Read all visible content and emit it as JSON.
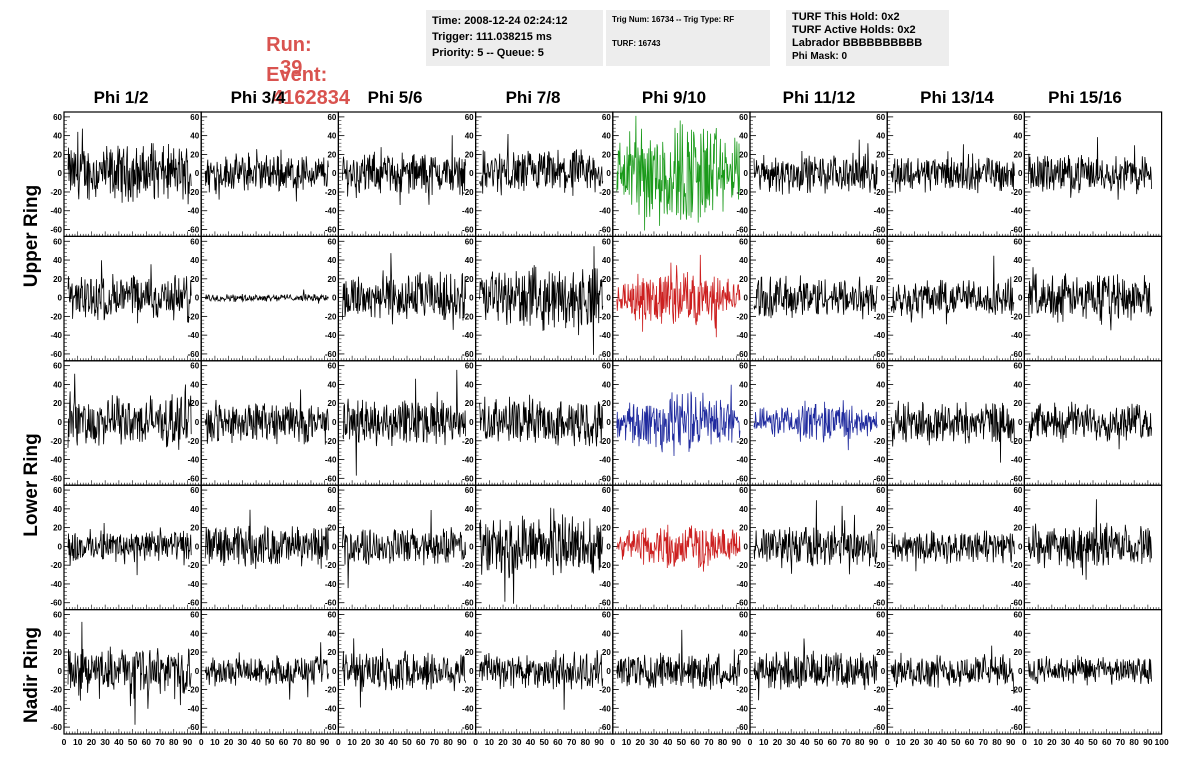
{
  "header": {
    "run_label": "Run:",
    "run_value": "39",
    "event_label": "Event:",
    "event_value": "4162834",
    "box1": {
      "time": "Time: 2008-12-24 02:24:12",
      "trigger": "Trigger: 111.038215 ms",
      "priority": "Priority: 5 -- Queue: 5"
    },
    "box2": {
      "trig": "Trig Num: 16734 -- Trig Type: RF",
      "turf": "TURF: 16743"
    },
    "box3": {
      "hold": "TURF This Hold: 0x2",
      "active": "TURF Active Holds: 0x2",
      "labrador": "Labrador BBBBBBBBBB",
      "phimask": "Phi Mask: 0"
    }
  },
  "columns": [
    "Phi 1/2",
    "Phi 3/4",
    "Phi 5/6",
    "Phi 7/8",
    "Phi 9/10",
    "Phi 11/12",
    "Phi 13/14",
    "Phi 15/16"
  ],
  "rows": [
    {
      "label": "Upper Ring",
      "span": 2
    },
    {
      "label": "Lower Ring",
      "span": 2
    },
    {
      "label": "Nadir Ring",
      "span": 1
    }
  ],
  "colors": {
    "trace_default": "#000000",
    "trace_green": "#1a9a1a",
    "trace_red": "#cc1f1f",
    "trace_blue": "#1f2a9e",
    "run_text": "#d9534f",
    "info_box_bg": "#ededed"
  },
  "chart_data": {
    "type": "line",
    "y_ticks": [
      -60,
      -40,
      -20,
      0,
      20,
      40,
      60
    ],
    "ylim": [
      -62,
      62
    ],
    "x_ticks": [
      0,
      10,
      20,
      30,
      40,
      50,
      60,
      70,
      80,
      90,
      100
    ],
    "xlim": [
      0,
      100
    ],
    "panel_colors": [
      [
        "black",
        "black",
        "black",
        "black",
        "green",
        "black",
        "black",
        "black"
      ],
      [
        "black",
        "black",
        "black",
        "black",
        "red",
        "black",
        "black",
        "black"
      ],
      [
        "black",
        "black",
        "black",
        "black",
        "blue",
        "blue",
        "black",
        "black"
      ],
      [
        "black",
        "black",
        "black",
        "black",
        "red",
        "black",
        "black",
        "black"
      ],
      [
        "black",
        "black",
        "black",
        "black",
        "black",
        "black",
        "black",
        "black"
      ]
    ],
    "panel_amplitudes": [
      [
        24,
        16,
        18,
        20,
        40,
        16,
        16,
        16
      ],
      [
        20,
        3,
        22,
        26,
        20,
        18,
        16,
        20
      ],
      [
        22,
        18,
        20,
        20,
        22,
        14,
        18,
        16
      ],
      [
        14,
        18,
        16,
        26,
        16,
        18,
        14,
        18
      ],
      [
        20,
        12,
        18,
        16,
        16,
        16,
        14,
        12
      ]
    ]
  }
}
